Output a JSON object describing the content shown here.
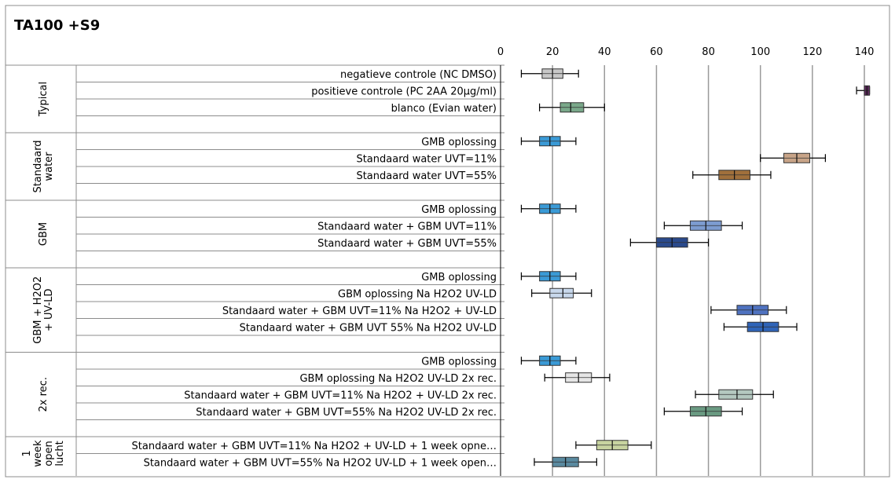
{
  "chart_data": {
    "type": "boxplot",
    "title": "TA100 +S9",
    "x_ticks": [
      "0",
      "20",
      "40",
      "60",
      "80",
      "100",
      "120",
      "140"
    ],
    "xlim": [
      0,
      140
    ],
    "grid": true,
    "groups": [
      {
        "label_lines": [
          "Typical"
        ],
        "rows": [
          {
            "label": "negatieve controle (NC DMSO)",
            "min": 8,
            "q1": 16,
            "median": 20,
            "q3": 24,
            "max": 30,
            "color": "#c8c8c8"
          },
          {
            "label": "positieve controle (PC 2AA 20µg/ml)",
            "min": 137,
            "q1": 140,
            "median": 141,
            "q3": 142,
            "max": 142,
            "color": "#5a2a5a"
          },
          {
            "label": "blanco (Evian water)",
            "min": 15,
            "q1": 23,
            "median": 27,
            "q3": 32,
            "max": 40,
            "color": "#7aa88a"
          },
          {
            "label": "",
            "blank": true
          }
        ]
      },
      {
        "label_lines": [
          "Standaard",
          "water"
        ],
        "rows": [
          {
            "label": "GMB oplossing",
            "min": 8,
            "q1": 15,
            "median": 19,
            "q3": 23,
            "max": 29,
            "color": "#3a9ad6"
          },
          {
            "label": "Standaard water UVT=11%",
            "min": 100,
            "q1": 109,
            "median": 114,
            "q3": 119,
            "max": 125,
            "color": "#c8a488"
          },
          {
            "label": "Standaard water UVT=55%",
            "min": 74,
            "q1": 84,
            "median": 90,
            "q3": 96,
            "max": 104,
            "color": "#a0703c"
          },
          {
            "label": "",
            "blank": true
          }
        ]
      },
      {
        "label_lines": [
          "GBM"
        ],
        "rows": [
          {
            "label": "GMB oplossing",
            "min": 8,
            "q1": 15,
            "median": 19,
            "q3": 23,
            "max": 29,
            "color": "#3a9ad6"
          },
          {
            "label": "Standaard water + GBM UVT=11%",
            "min": 63,
            "q1": 73,
            "median": 79,
            "q3": 85,
            "max": 93,
            "color": "#7d9cd0"
          },
          {
            "label": "Standaard water + GBM UVT=55%",
            "min": 50,
            "q1": 60,
            "median": 66,
            "q3": 72,
            "max": 80,
            "color": "#2a4a8c"
          },
          {
            "label": "",
            "blank": true
          }
        ]
      },
      {
        "label_lines": [
          "GBM + H2O2",
          "+ UV-LD"
        ],
        "rows": [
          {
            "label": "GMB oplossing",
            "min": 8,
            "q1": 15,
            "median": 19,
            "q3": 23,
            "max": 29,
            "color": "#3a9ad6"
          },
          {
            "label": "GBM oplossing Na H2O2 UV-LD",
            "min": 12,
            "q1": 19,
            "median": 24,
            "q3": 28,
            "max": 35,
            "color": "#c8d8ec"
          },
          {
            "label": "Standaard water + GBM UVT=11% Na H2O2 + UV-LD",
            "min": 81,
            "q1": 91,
            "median": 97,
            "q3": 103,
            "max": 110,
            "color": "#4f72c0"
          },
          {
            "label": "Standaard water + GBM UVT 55% Na H2O2 UV-LD",
            "min": 86,
            "q1": 95,
            "median": 101,
            "q3": 107,
            "max": 114,
            "color": "#2f64b8"
          },
          {
            "label": "",
            "blank": true
          }
        ]
      },
      {
        "label_lines": [
          "2x rec."
        ],
        "rows": [
          {
            "label": "GMB oplossing",
            "min": 8,
            "q1": 15,
            "median": 19,
            "q3": 23,
            "max": 29,
            "color": "#3a9ad6"
          },
          {
            "label": "GBM oplossing Na H2O2 UV-LD 2x rec.",
            "min": 17,
            "q1": 25,
            "median": 30,
            "q3": 35,
            "max": 42,
            "color": "#e6e6e6"
          },
          {
            "label": "Standaard water + GBM UVT=11% Na H2O2 + UV-LD 2x rec.",
            "min": 75,
            "q1": 84,
            "median": 91,
            "q3": 97,
            "max": 105,
            "color": "#b4c8c0"
          },
          {
            "label": "Standaard water + GBM UVT=55% Na H2O2 UV-LD 2x rec.",
            "min": 63,
            "q1": 73,
            "median": 79,
            "q3": 85,
            "max": 93,
            "color": "#6a9a82"
          },
          {
            "label": "",
            "blank": true
          }
        ]
      },
      {
        "label_lines": [
          "1",
          "week",
          "open",
          "lucht"
        ],
        "rows": [
          {
            "label": "Standaard water + GBM UVT=11% Na H2O2 + UV-LD + 1 week opne…",
            "min": 29,
            "q1": 37,
            "median": 43,
            "q3": 49,
            "max": 58,
            "color": "#c8d4a0"
          },
          {
            "label": "Standaard water + GBM UVT=55% Na H2O2 UV-LD + 1 week open…",
            "min": 13,
            "q1": 20,
            "median": 25,
            "q3": 30,
            "max": 37,
            "color": "#5a8aa0"
          }
        ]
      }
    ]
  }
}
